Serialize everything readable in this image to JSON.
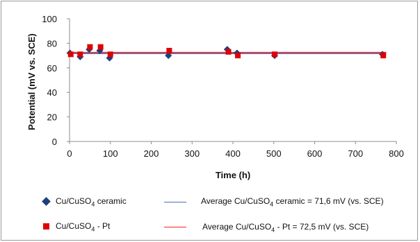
{
  "chart_data": {
    "type": "scatter",
    "ylabel": "Potential (mV vs. SCE)",
    "xlabel": "Time (h)",
    "xlim": [
      0,
      800
    ],
    "ylim": [
      0,
      100
    ],
    "xticks": [
      0,
      100,
      200,
      300,
      400,
      500,
      600,
      700,
      800
    ],
    "yticks": [
      0,
      20,
      40,
      60,
      80,
      100
    ],
    "grid": false,
    "legend_position": "bottom",
    "series": [
      {
        "name": "Cu/CuSO4 ceramic",
        "marker": "diamond",
        "color": "#1f3f7a",
        "x": [
          1,
          26,
          48,
          74,
          98,
          242,
          386,
          410,
          502,
          766
        ],
        "y": [
          72,
          69,
          75,
          74,
          68,
          70,
          75,
          72,
          70,
          71
        ]
      },
      {
        "name": "Cu/CuSO4 - Pt",
        "marker": "square",
        "color": "#e00000",
        "x": [
          3,
          26,
          50,
          76,
          100,
          244,
          389,
          412,
          502,
          768
        ],
        "y": [
          71,
          71,
          77,
          77,
          71,
          74,
          73,
          70,
          71,
          70
        ]
      }
    ],
    "average_lines": [
      {
        "name": "Average Cu/CuSO4 ceramic = 71,6 mV (vs. SCE)",
        "value": 71.6,
        "color": "#4a6fb5"
      },
      {
        "name": "Average Cu/CuSO4 - Pt = 72,5 mV (vs. SCE)",
        "value": 72.5,
        "color": "#ff2020"
      }
    ]
  },
  "legend": {
    "ceramic_prefix": "Cu/CuSO",
    "ceramic_sub": "4",
    "ceramic_suffix": " ceramic",
    "pt_prefix": "Cu/CuSO",
    "pt_sub": "4",
    "pt_suffix": " - Pt",
    "avg_ceramic_prefix": "Average Cu/CuSO",
    "avg_ceramic_sub": "4",
    "avg_ceramic_suffix": " ceramic = 71,6 mV (vs. SCE)",
    "avg_pt_prefix": "Average Cu/CuSO",
    "avg_pt_sub": "4",
    "avg_pt_suffix": " - Pt = 72,5 mV (vs. SCE)"
  }
}
